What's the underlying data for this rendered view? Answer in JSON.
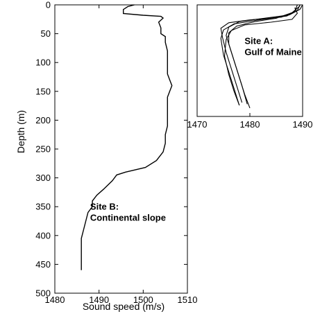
{
  "chart_data": [
    {
      "id": "site-b",
      "type": "line",
      "title": "",
      "xlabel": "Sound speed (m/s)",
      "ylabel": "Depth (m)",
      "xlim": [
        1480,
        1510
      ],
      "ylim": [
        0,
        500
      ],
      "y_inverted": true,
      "grid": false,
      "xticks": [
        1480,
        1490,
        1500,
        1510
      ],
      "yticks": [
        0,
        50,
        100,
        150,
        200,
        250,
        300,
        350,
        400,
        450,
        500
      ],
      "annotation": {
        "line1": "Site B:",
        "line2": "Continental slope",
        "x": 1488,
        "y": 355
      },
      "series": [
        {
          "x": [
            1498,
            1496.5,
            1495.5,
            1495.5,
            1500,
            1504,
            1504.5,
            1503.5,
            1504,
            1504,
            1505,
            1505,
            1505.5,
            1505.5,
            1505.5,
            1506,
            1506.5,
            1506,
            1505.5,
            1505.5,
            1505.5,
            1505.5,
            1505,
            1505,
            1504.5,
            1503,
            1500.5,
            1496,
            1494,
            1493,
            1491,
            1489.5,
            1488.5,
            1488.5,
            1487.5,
            1487,
            1486.5,
            1486,
            1486,
            1486,
            1486
          ],
          "y": [
            0,
            3,
            8,
            15,
            18,
            20,
            23,
            30,
            40,
            50,
            55,
            65,
            80,
            100,
            120,
            130,
            140,
            150,
            160,
            180,
            200,
            210,
            225,
            240,
            255,
            270,
            282,
            290,
            295,
            305,
            320,
            330,
            340,
            350,
            360,
            375,
            390,
            405,
            420,
            440,
            460
          ]
        }
      ]
    },
    {
      "id": "site-a",
      "type": "line",
      "title": "",
      "xlabel": "",
      "ylabel": "",
      "xlim": [
        1470,
        1490
      ],
      "ylim": [
        0,
        200
      ],
      "y_inverted": true,
      "grid": false,
      "xticks": [
        1470,
        1480,
        1490
      ],
      "annotation": {
        "line1": "Site A:",
        "line2": "Gulf of Maine",
        "x": 1479,
        "y": 70
      },
      "series": [
        {
          "x": [
            1489.5,
            1489,
            1487,
            1481,
            1477,
            1475,
            1474.5,
            1475,
            1476,
            1477,
            1478
          ],
          "y": [
            0,
            10,
            20,
            28,
            34,
            45,
            60,
            90,
            120,
            150,
            180
          ]
        },
        {
          "x": [
            1489,
            1488.5,
            1486,
            1480,
            1476,
            1474.5,
            1474.8,
            1475.5,
            1476.5,
            1477.5,
            1478.5
          ],
          "y": [
            0,
            12,
            22,
            27,
            32,
            42,
            58,
            85,
            115,
            145,
            175
          ]
        },
        {
          "x": [
            1490,
            1489.5,
            1487.5,
            1482,
            1478,
            1476,
            1475.5,
            1476.5,
            1477.5,
            1478.5,
            1479.5
          ],
          "y": [
            0,
            8,
            18,
            25,
            30,
            40,
            55,
            85,
            115,
            145,
            178
          ]
        },
        {
          "x": [
            1489.5,
            1488,
            1485,
            1481,
            1477.5,
            1476,
            1476,
            1477,
            1478,
            1479,
            1480
          ],
          "y": [
            2,
            14,
            24,
            30,
            38,
            50,
            70,
            100,
            130,
            160,
            185
          ]
        },
        {
          "x": [
            1488.5,
            1489,
            1488,
            1484,
            1479,
            1476.5,
            1475.5,
            1475.2,
            1476,
            1477,
            1478
          ],
          "y": [
            5,
            15,
            26,
            31,
            36,
            46,
            62,
            92,
            125,
            155,
            180
          ]
        }
      ]
    }
  ]
}
